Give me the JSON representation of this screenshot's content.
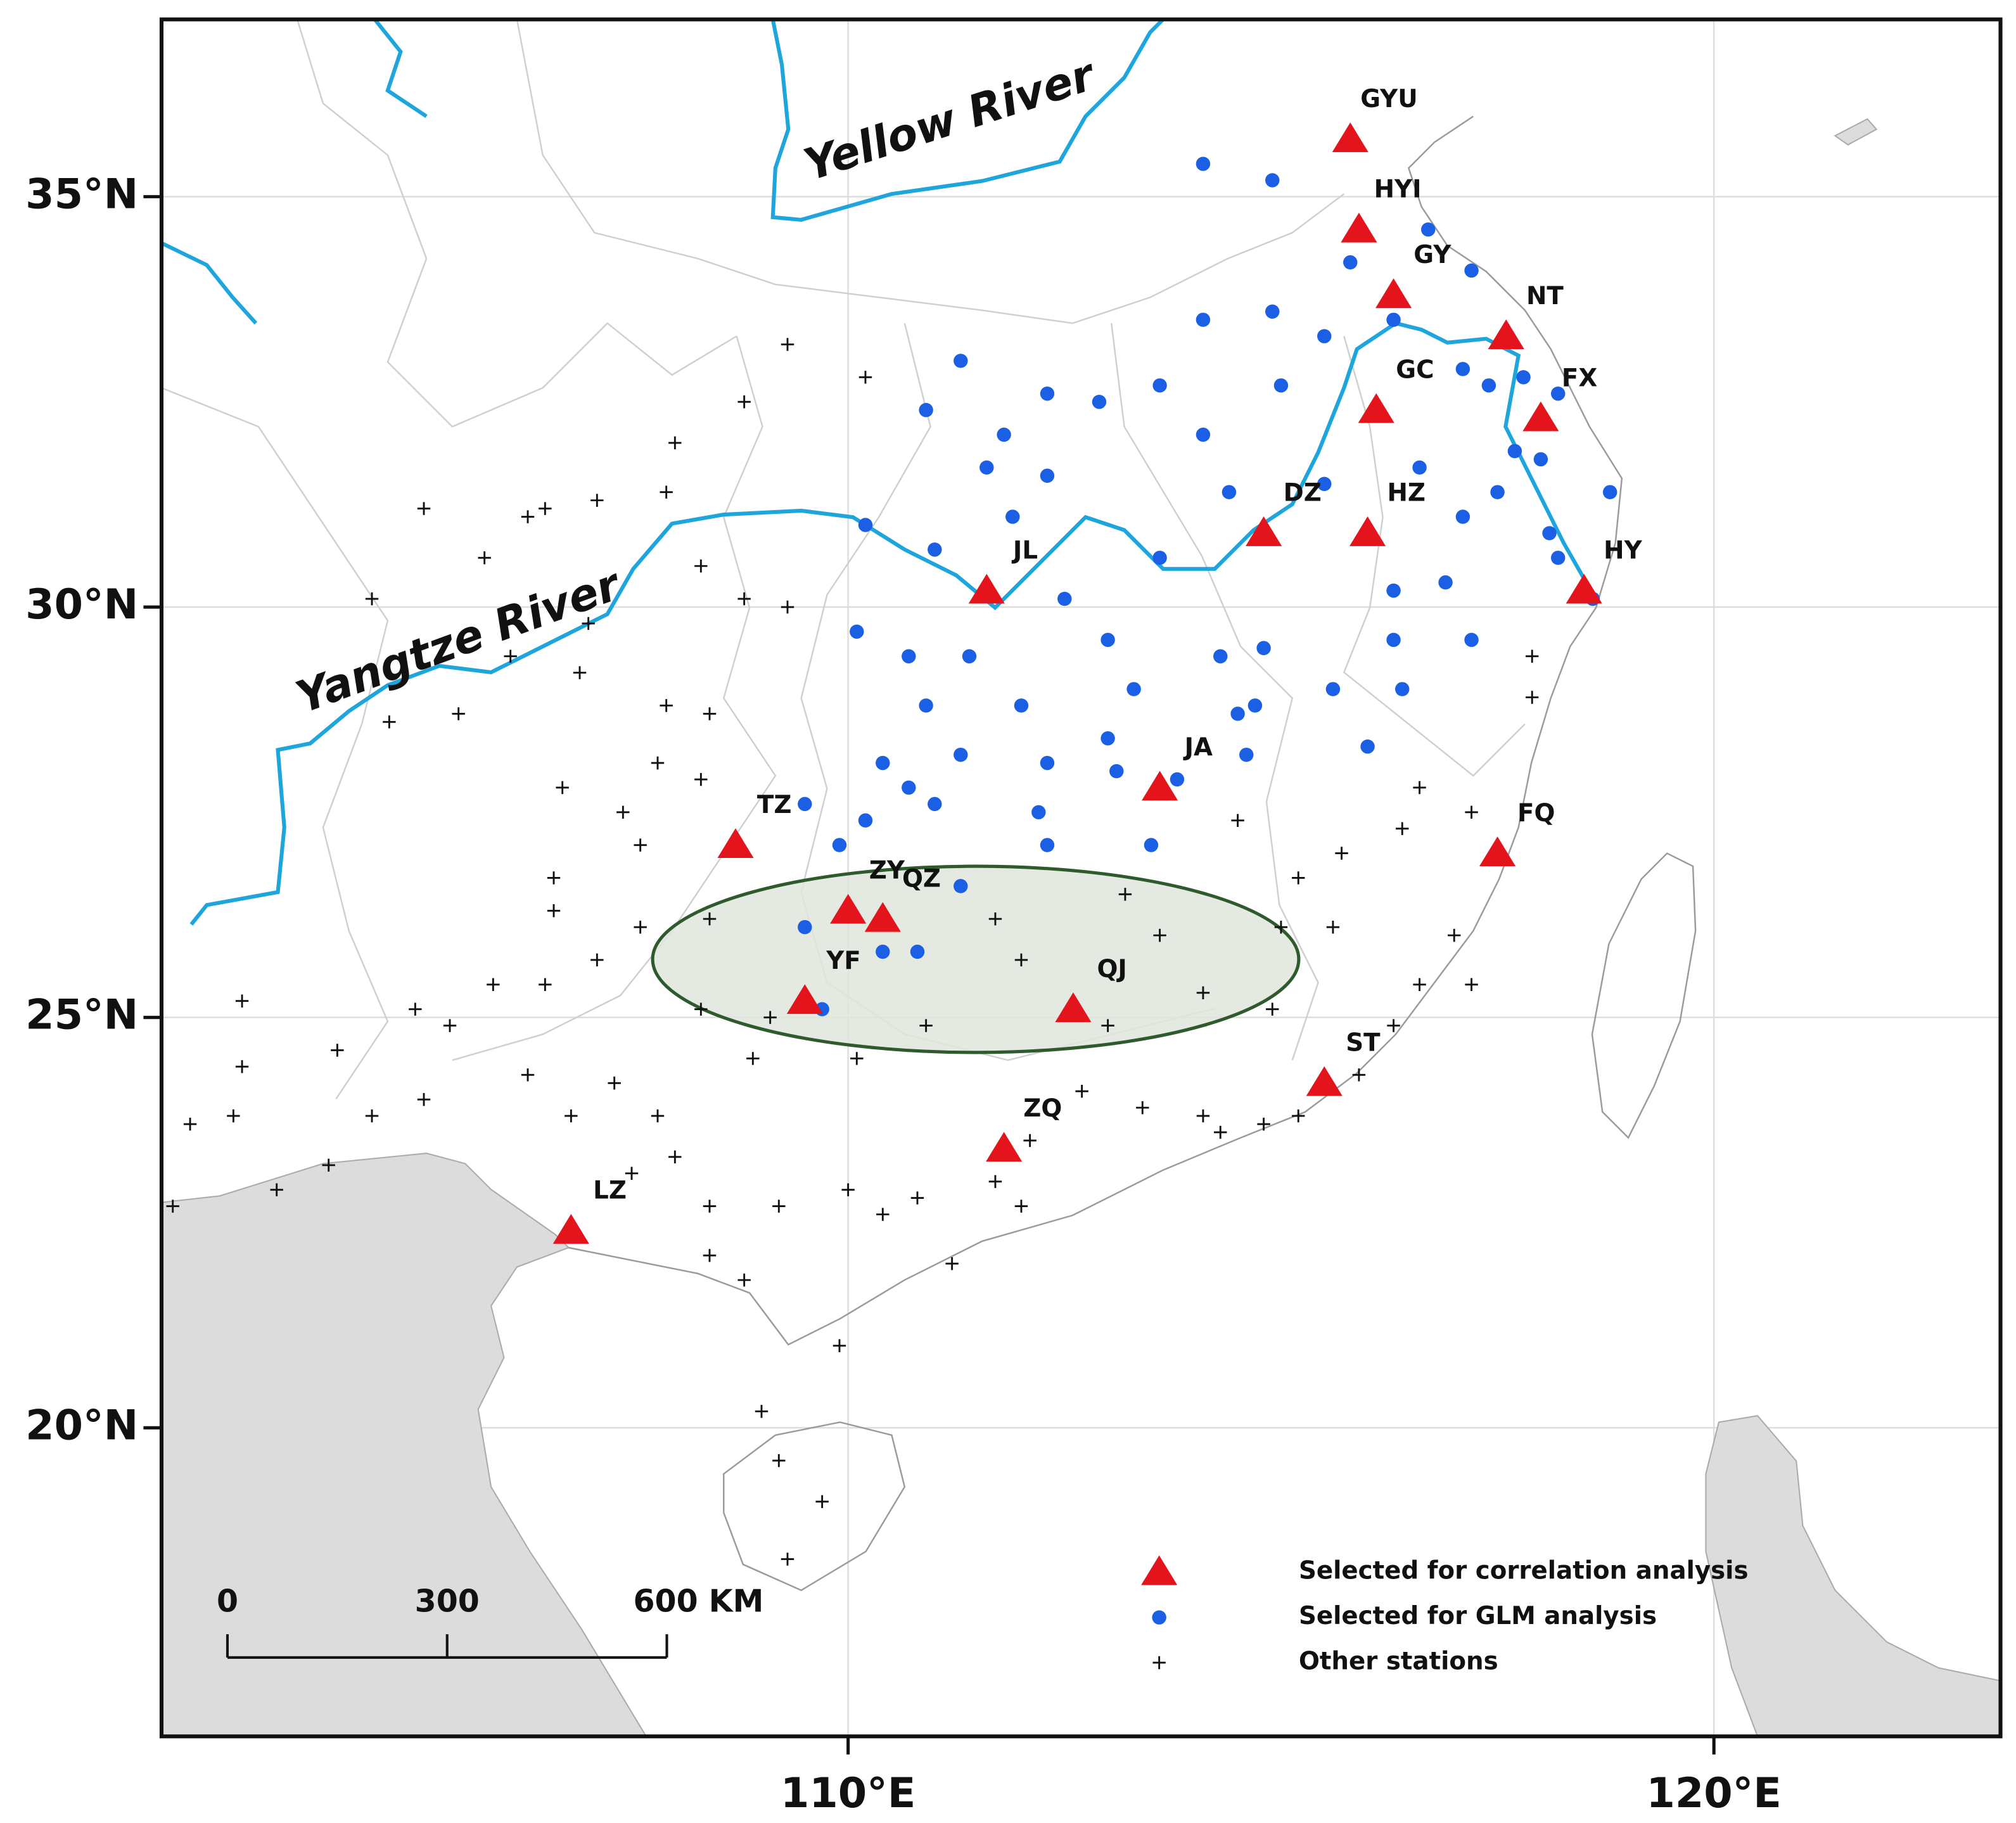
{
  "map_data": {
    "type": "station_map",
    "xlim": [
      102.07,
      123.31
    ],
    "ylim": [
      16.24,
      37.16
    ],
    "xticks": [
      {
        "value": 110,
        "label": "110°E"
      },
      {
        "value": 120,
        "label": "120°E"
      }
    ],
    "yticks": [
      {
        "value": 35,
        "label": "35°N"
      },
      {
        "value": 30,
        "label": "30°N"
      },
      {
        "value": 25,
        "label": "25°N"
      },
      {
        "value": 20,
        "label": "20°N"
      }
    ],
    "grid": true,
    "rivers": [
      "Yellow River",
      "Yangtze River"
    ],
    "correlation_stations": {
      "legend": "Selected for correlation analysis",
      "color": "#e3141b",
      "names": [
        "GYU",
        "HYI",
        "GY",
        "NT",
        "GC",
        "FX",
        "DZ",
        "HZ",
        "JL",
        "HY",
        "JA",
        "TZ",
        "FQ",
        "ZY",
        "QZ",
        "YF",
        "QJ",
        "ST",
        "ZQ",
        "LZ"
      ],
      "lon": [
        115.8,
        115.9,
        116.3,
        117.6,
        116.1,
        118.0,
        114.8,
        116.0,
        111.6,
        118.5,
        113.6,
        108.7,
        117.5,
        110.0,
        110.4,
        109.5,
        112.6,
        115.5,
        111.8,
        106.8
      ],
      "lat": [
        35.7,
        34.6,
        33.8,
        33.3,
        32.4,
        32.3,
        30.9,
        30.9,
        30.2,
        30.2,
        27.8,
        27.1,
        27.0,
        26.3,
        26.2,
        25.2,
        25.1,
        24.2,
        23.4,
        22.4
      ]
    },
    "glm_stations": {
      "legend": "Selected for GLM analysis",
      "color": "#1b5fe4",
      "lon": [
        114.1,
        114.9,
        115.8,
        116.7,
        117.2,
        114.1,
        114.9,
        115.5,
        116.3,
        113.6,
        112.9,
        112.3,
        111.3,
        110.9,
        111.8,
        111.6,
        112.3,
        114.1,
        115.0,
        117.1,
        117.8,
        117.7,
        117.5,
        118.1,
        118.8,
        118.2,
        110.2,
        111.0,
        111.9,
        112.5,
        113.6,
        114.4,
        115.5,
        116.6,
        117.1,
        116.9,
        116.3,
        117.2,
        116.3,
        110.1,
        110.7,
        111.4,
        112.0,
        113.0,
        113.3,
        114.3,
        114.8,
        114.7,
        115.6,
        116.4,
        116.0,
        110.9,
        111.3,
        110.7,
        110.4,
        110.2,
        109.9,
        111.0,
        112.3,
        112.2,
        112.3,
        113.0,
        113.1,
        113.5,
        113.8,
        114.5,
        114.6,
        109.5,
        109.5,
        109.7,
        110.4,
        110.8,
        111.3,
        118.0,
        117.4,
        118.2,
        118.6
      ],
      "lat": [
        35.4,
        35.2,
        34.2,
        34.6,
        34.1,
        33.5,
        33.6,
        33.3,
        33.5,
        32.7,
        32.5,
        32.6,
        33.0,
        32.4,
        32.1,
        31.7,
        31.6,
        32.1,
        32.7,
        32.9,
        32.8,
        31.9,
        31.4,
        30.9,
        31.4,
        30.6,
        31.0,
        30.7,
        31.1,
        30.1,
        30.6,
        31.4,
        31.5,
        31.7,
        31.1,
        30.3,
        30.2,
        29.6,
        29.6,
        29.7,
        29.4,
        29.4,
        28.8,
        29.6,
        29.0,
        29.4,
        29.5,
        28.8,
        29.0,
        29.0,
        28.3,
        28.8,
        28.2,
        27.8,
        28.1,
        27.4,
        27.1,
        27.6,
        28.1,
        27.5,
        27.1,
        28.4,
        28.0,
        27.1,
        27.9,
        28.7,
        28.2,
        27.6,
        26.1,
        25.1,
        25.8,
        25.8,
        26.6,
        31.8,
        32.7,
        32.6,
        30.1
      ]
    },
    "other_stations": {
      "legend": "Other stations",
      "color": "#111111",
      "lon": [
        109.3,
        110.2,
        108.8,
        108.0,
        107.9,
        107.1,
        106.5,
        105.1,
        106.3,
        104.5,
        105.8,
        107.0,
        108.3,
        108.8,
        109.3,
        106.1,
        106.9,
        107.9,
        108.4,
        104.7,
        105.5,
        106.7,
        107.4,
        107.8,
        108.3,
        107.6,
        106.6,
        107.6,
        106.6,
        107.1,
        106.5,
        105.9,
        105.0,
        103.0,
        103.0,
        104.1,
        104.5,
        102.9,
        102.4,
        102.2,
        103.4,
        104.0,
        105.1,
        105.4,
        106.3,
        106.8,
        107.3,
        107.8,
        108.0,
        107.5,
        108.4,
        108.4,
        108.8,
        109.2,
        110.0,
        110.4,
        110.8,
        111.2,
        111.7,
        112.0,
        112.1,
        112.7,
        113.4,
        114.1,
        114.3,
        114.8,
        115.2,
        115.9,
        116.3,
        116.6,
        117.2,
        117.0,
        117.2,
        117.9,
        117.9,
        116.6,
        116.4,
        115.7,
        115.2,
        114.5,
        115.0,
        115.6,
        114.9,
        114.1,
        113.2,
        113.6,
        113.0,
        111.7,
        112.0,
        110.9,
        110.1,
        109.1,
        108.9,
        108.3,
        108.4,
        109.2,
        109.7,
        109.3,
        109.0,
        109.9
      ],
      "lat": [
        33.2,
        32.8,
        32.5,
        32.0,
        31.4,
        31.3,
        31.2,
        31.2,
        31.1,
        30.1,
        30.6,
        29.8,
        30.5,
        30.1,
        30.0,
        29.4,
        29.2,
        28.8,
        28.7,
        28.6,
        28.7,
        27.8,
        27.5,
        28.1,
        27.9,
        27.1,
        26.7,
        26.1,
        26.3,
        25.7,
        25.4,
        25.4,
        25.1,
        25.2,
        24.4,
        24.6,
        23.8,
        23.8,
        23.7,
        22.7,
        22.9,
        23.2,
        24.0,
        24.9,
        24.3,
        23.8,
        24.2,
        23.8,
        23.3,
        23.1,
        22.7,
        22.1,
        21.8,
        22.7,
        22.9,
        22.6,
        22.8,
        22.0,
        23.0,
        22.7,
        23.5,
        24.1,
        23.9,
        23.8,
        23.6,
        23.7,
        23.8,
        24.3,
        24.9,
        25.4,
        25.4,
        26.0,
        27.5,
        28.9,
        29.4,
        27.8,
        27.3,
        27.0,
        26.7,
        27.4,
        26.1,
        26.1,
        25.1,
        25.3,
        26.5,
        26.0,
        24.9,
        26.2,
        25.7,
        24.9,
        24.5,
        25.0,
        24.5,
        25.1,
        26.2,
        19.6,
        19.1,
        18.4,
        20.2,
        21.0
      ]
    },
    "scale_bar": {
      "ticks": [
        0,
        300,
        {
          "value": 600,
          "label": "600 KM"
        }
      ]
    }
  }
}
